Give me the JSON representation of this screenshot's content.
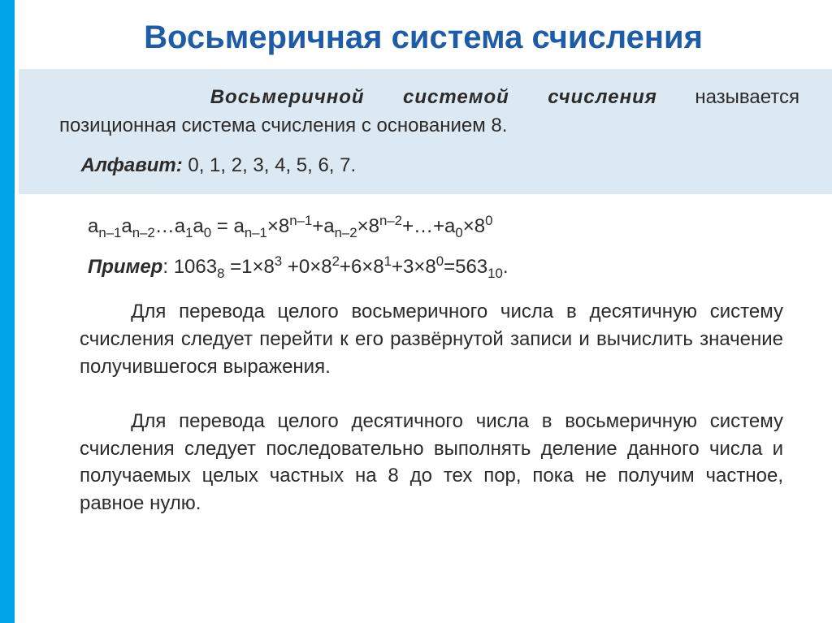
{
  "colors": {
    "accent_bar": "#00a2e8",
    "title_color": "#1f5ca8",
    "infobox_bg": "#dce9f2",
    "text_color": "#2b2b2b",
    "page_bg": "#ffffff"
  },
  "title": "Восьмеричная система счисления",
  "definition": {
    "term": "Восьмеричной системой счисления",
    "rest_line1": " называется",
    "line2": "позиционная система счисления с основанием 8."
  },
  "alphabet": {
    "label": "Алфавит:",
    "values": " 0, 1, 2, 3, 4, 5, 6, 7."
  },
  "formula": {
    "lhs_parts": [
      "a",
      "n–1",
      "a",
      "n–2",
      "…a",
      "1",
      "a",
      "0",
      " = a",
      "n–1",
      "×8",
      "n–1",
      "+a",
      "n–2",
      "×8",
      "n–2",
      "+…+a",
      "0",
      "×8",
      "0"
    ]
  },
  "example": {
    "label": "Пример",
    "number": "1063",
    "base": "8",
    "expansion_parts": [
      "1×8",
      "3",
      " +0×8",
      "2",
      "+6×8",
      "1",
      "+3×8",
      "0"
    ],
    "result": "563",
    "result_base": "10"
  },
  "paragraph1": "Для перевода целого восьмеричного числа в десятичную систему счисления следует перейти к его развёрнутой записи и вычислить значение получившегося выражения.",
  "paragraph2": "Для перевода целого десятичного числа в восьмеричную систему счисления следует последовательно выполнять деление данного числа и получаемых целых частных на 8 до тех пор, пока не получим частное, равное нулю."
}
